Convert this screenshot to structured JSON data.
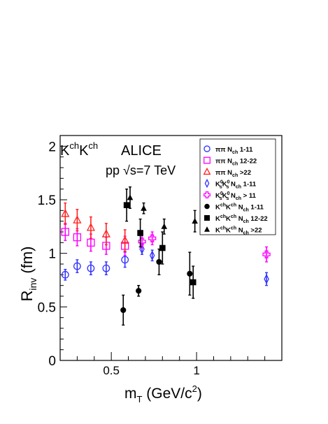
{
  "chart_data": {
    "type": "scatter",
    "xlabel_main": "m",
    "xlabel_sub": "T",
    "xlabel_unit": " (GeV/c",
    "xlabel_sup": "2",
    "xlabel_close": ")",
    "ylabel_main": "R",
    "ylabel_sub": "inv",
    "ylabel_unit": " (fm)",
    "xlim": [
      0.2,
      1.5
    ],
    "ylim": [
      0,
      2.1
    ],
    "x_ticks": [
      0.5,
      1
    ],
    "x_tick_labels": [
      "0.5",
      "1"
    ],
    "y_ticks": [
      0,
      0.5,
      1,
      1.5,
      2
    ],
    "y_tick_labels": [
      "0",
      "0.5",
      "1",
      "1.5",
      "2"
    ],
    "annotations": {
      "system_main": "K",
      "system_sup1": "ch",
      "system_mid": "K",
      "system_sup2": "ch",
      "experiment": "ALICE",
      "energy_pre": "pp ",
      "energy_root": "√",
      "energy_post": "s=7 TeV"
    },
    "legend_position": "top-right",
    "series": [
      {
        "name": "ππ N_ch 1-11",
        "legend": {
          "pre": "ππ  N",
          "sub": "ch",
          "post": " 1-11"
        },
        "marker": "open-circle",
        "color": "#3333ff",
        "errcolor": "#3333ff",
        "x": [
          0.23,
          0.3,
          0.38,
          0.47,
          0.58
        ],
        "y": [
          0.8,
          0.88,
          0.86,
          0.86,
          0.94
        ],
        "err": [
          0.05,
          0.06,
          0.06,
          0.06,
          0.07
        ]
      },
      {
        "name": "ππ N_ch 12-22",
        "legend": {
          "pre": "ππ  N",
          "sub": "ch",
          "post": " 12-22"
        },
        "marker": "open-square",
        "color": "#ff00ff",
        "errcolor": "#ff00ff",
        "x": [
          0.23,
          0.3,
          0.38,
          0.47,
          0.58
        ],
        "y": [
          1.2,
          1.15,
          1.1,
          1.07,
          1.07
        ],
        "err": [
          0.08,
          0.08,
          0.08,
          0.08,
          0.09
        ]
      },
      {
        "name": "ππ N_ch >22",
        "legend": {
          "pre": "ππ  N",
          "sub": "ch",
          "post": " >22"
        },
        "marker": "open-triangle",
        "color": "#ff2222",
        "errcolor": "#ff2222",
        "x": [
          0.23,
          0.3,
          0.38,
          0.47,
          0.58
        ],
        "y": [
          1.37,
          1.31,
          1.24,
          1.18,
          1.12
        ],
        "err": [
          0.1,
          0.1,
          0.1,
          0.1,
          0.1
        ]
      },
      {
        "name": "K0sK0s N_ch 1-11",
        "legend": {
          "pre": "K",
          "sup1": "0",
          "s1": "s",
          "mid": "K",
          "sup2": "0",
          "s2": "s",
          "n": "  N",
          "sub": "ch",
          "post": " 1-11"
        },
        "marker": "open-diamond",
        "color": "#3333ff",
        "errcolor": "#3333ff",
        "x": [
          0.68,
          0.74,
          1.41
        ],
        "y": [
          1.04,
          0.98,
          0.76
        ],
        "err": [
          0.05,
          0.05,
          0.06
        ]
      },
      {
        "name": "K0sK0s N_ch > 11",
        "legend": {
          "pre": "K",
          "sup1": "0",
          "s1": "s",
          "mid": "K",
          "sup2": "0",
          "s2": "s",
          "n": "  N",
          "sub": "ch",
          "post": " > 11"
        },
        "marker": "open-cross",
        "color": "#ff00ff",
        "errcolor": "#ff00ff",
        "x": [
          0.68,
          0.74,
          1.41
        ],
        "y": [
          1.11,
          1.14,
          0.99
        ],
        "err": [
          0.06,
          0.06,
          0.07
        ]
      },
      {
        "name": "KchKch N_ch 1-11",
        "legend": {
          "pre": "K",
          "sup1": "ch",
          "mid": "K",
          "sup2": "ch",
          "n": "  N",
          "sub": "ch",
          "post": " 1-11"
        },
        "marker": "filled-circle",
        "color": "#000000",
        "errcolor": "#000000",
        "x": [
          0.57,
          0.66,
          0.78,
          0.96
        ],
        "y": [
          0.47,
          0.65,
          0.92,
          0.81
        ],
        "err": [
          0.14,
          0.05,
          0.12,
          0.2
        ]
      },
      {
        "name": "KchKch N_ch 12-22",
        "legend": {
          "pre": "K",
          "sup1": "ch",
          "mid": "K",
          "sup2": "ch",
          "n": "  N",
          "sub": "ch",
          "post": " 12-22"
        },
        "marker": "filled-square",
        "color": "#000000",
        "errcolor": "#000000",
        "x": [
          0.59,
          0.67,
          0.8,
          0.98
        ],
        "y": [
          1.45,
          1.19,
          1.05,
          0.73
        ],
        "err": [
          0.15,
          0.13,
          0.15,
          0.15
        ]
      },
      {
        "name": "KchKch N_ch >22",
        "legend": {
          "pre": "K",
          "sup1": "ch",
          "mid": "K",
          "sup2": "ch",
          "n": "  N",
          "sub": "ch",
          "post": " >22"
        },
        "marker": "filled-triangle",
        "color": "#000000",
        "errcolor": "#000000",
        "x": [
          0.61,
          0.69,
          0.81,
          0.99
        ],
        "y": [
          1.52,
          1.42,
          1.25,
          1.3
        ],
        "err": [
          0.1,
          0.05,
          0.07,
          0.1
        ]
      }
    ]
  }
}
